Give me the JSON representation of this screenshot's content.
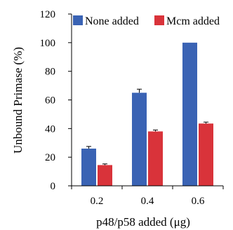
{
  "chart_data": {
    "type": "bar",
    "categories": [
      "0.2",
      "0.4",
      "0.6"
    ],
    "series": [
      {
        "name": "None added",
        "values": [
          26,
          65,
          100
        ],
        "errors": [
          1.5,
          2.5,
          0
        ],
        "color": "#3a63b4"
      },
      {
        "name": "Mcm added",
        "values": [
          14.5,
          38,
          43.5
        ],
        "errors": [
          0.8,
          1.0,
          1.0
        ],
        "color": "#d9333a"
      }
    ],
    "title": "",
    "xlabel": "p48/p58  added (μg)",
    "ylabel": "Unbound Primase  (%)",
    "ylim": [
      0,
      120
    ],
    "yticks": [
      0,
      20,
      40,
      60,
      80,
      100,
      120
    ],
    "grid": false,
    "legend": "top"
  }
}
